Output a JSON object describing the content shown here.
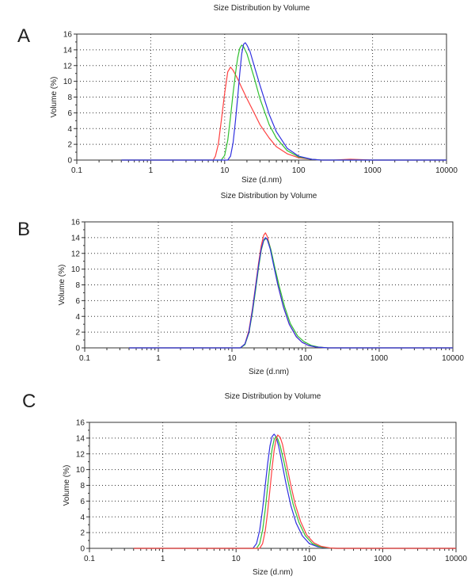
{
  "chart_data": [
    {
      "type": "line",
      "panel_label": "A",
      "title": "Size Distribution by Volume",
      "xlabel": "Size (d.nm)",
      "ylabel": "Volume (%)",
      "x_scale": "log",
      "xlim": [
        0.1,
        10000
      ],
      "ylim": [
        0,
        16
      ],
      "x_ticks": [
        "0.1",
        "1",
        "10",
        "100",
        "1000",
        "10000"
      ],
      "y_ticks": [
        "0",
        "2",
        "4",
        "6",
        "8",
        "10",
        "12",
        "14",
        "16"
      ],
      "grid": "dotted",
      "series": [
        {
          "color": "#ff4040",
          "x": [
            0.4,
            7.0,
            7.5,
            8.2,
            9.0,
            10.0,
            11.0,
            12.0,
            13.0,
            15.0,
            17.0,
            20.0,
            25.0,
            30.0,
            40.0,
            50.0,
            70.0,
            100.0,
            150.0,
            200.0,
            300.0,
            500.0,
            1000.0,
            5000.0,
            10000.0
          ],
          "y": [
            0,
            0,
            0.5,
            2.0,
            5.0,
            8.5,
            11.2,
            11.8,
            11.4,
            10.3,
            9.2,
            7.8,
            6.0,
            4.5,
            2.8,
            1.7,
            0.8,
            0.3,
            0.1,
            0,
            0,
            0.1,
            0,
            0,
            0
          ]
        },
        {
          "color": "#30c030",
          "x": [
            0.4,
            9.0,
            10.0,
            11.0,
            12.0,
            13.0,
            14.0,
            15.0,
            16.0,
            17.0,
            18.0,
            20.0,
            25.0,
            30.0,
            40.0,
            50.0,
            70.0,
            100.0,
            150.0,
            200.0,
            10000.0
          ],
          "y": [
            0,
            0,
            0.6,
            2.5,
            5.5,
            8.5,
            11.0,
            13.0,
            14.2,
            14.6,
            14.4,
            13.5,
            10.5,
            7.8,
            4.5,
            2.8,
            1.2,
            0.4,
            0.1,
            0,
            0
          ]
        },
        {
          "color": "#3030e0",
          "x": [
            0.4,
            11.0,
            12.0,
            13.0,
            14.0,
            15.0,
            16.0,
            17.0,
            18.0,
            19.0,
            20.0,
            22.0,
            25.0,
            30.0,
            40.0,
            50.0,
            70.0,
            100.0,
            150.0,
            200.0,
            10000.0
          ],
          "y": [
            0,
            0,
            0.5,
            2.2,
            5.0,
            8.0,
            11.0,
            13.5,
            14.7,
            14.9,
            14.6,
            13.8,
            12.0,
            9.5,
            5.8,
            3.6,
            1.5,
            0.5,
            0.1,
            0,
            0
          ]
        }
      ]
    },
    {
      "type": "line",
      "panel_label": "B",
      "title": "Size Distribution by Volume",
      "xlabel": "Size (d.nm)",
      "ylabel": "Volume (%)",
      "x_scale": "log",
      "xlim": [
        0.1,
        10000
      ],
      "ylim": [
        0,
        16
      ],
      "x_ticks": [
        "0.1",
        "1",
        "10",
        "100",
        "1000",
        "10000"
      ],
      "y_ticks": [
        "0",
        "2",
        "4",
        "6",
        "8",
        "10",
        "12",
        "14",
        "16"
      ],
      "grid": "dotted",
      "series": [
        {
          "color": "#ff4040",
          "x": [
            0.4,
            13.0,
            15.0,
            17.0,
            19.0,
            21.0,
            23.0,
            25.0,
            27.0,
            28.5,
            30.0,
            33.0,
            37.0,
            42.0,
            50.0,
            60.0,
            75.0,
            90.0,
            110.0,
            140.0,
            200.0,
            10000.0
          ],
          "y": [
            0,
            0,
            0.5,
            2.2,
            5.0,
            8.0,
            10.8,
            13.0,
            14.3,
            14.6,
            14.2,
            12.8,
            10.5,
            8.0,
            5.2,
            3.0,
            1.4,
            0.7,
            0.3,
            0.1,
            0,
            0
          ]
        },
        {
          "color": "#30c030",
          "x": [
            0.4,
            13.0,
            15.0,
            17.0,
            19.0,
            21.0,
            23.0,
            25.0,
            27.0,
            29.0,
            31.0,
            34.0,
            38.0,
            44.0,
            52.0,
            62.0,
            78.0,
            95.0,
            120.0,
            150.0,
            200.0,
            10000.0
          ],
          "y": [
            0,
            0,
            0.4,
            1.9,
            4.5,
            7.4,
            10.2,
            12.4,
            13.6,
            13.9,
            13.6,
            12.4,
            10.3,
            7.8,
            5.2,
            3.1,
            1.5,
            0.8,
            0.3,
            0.1,
            0,
            0
          ]
        },
        {
          "color": "#3030e0",
          "x": [
            0.4,
            13.0,
            15.0,
            17.0,
            19.0,
            21.0,
            23.0,
            25.0,
            27.0,
            28.5,
            30.0,
            33.0,
            37.0,
            42.0,
            50.0,
            60.0,
            75.0,
            90.0,
            110.0,
            140.0,
            200.0,
            10000.0
          ],
          "y": [
            0,
            0,
            0.5,
            2.0,
            4.8,
            7.8,
            10.5,
            12.6,
            13.7,
            14.0,
            13.8,
            12.6,
            10.4,
            8.0,
            5.2,
            3.0,
            1.4,
            0.7,
            0.3,
            0.1,
            0,
            0
          ]
        }
      ]
    },
    {
      "type": "line",
      "panel_label": "C",
      "title": "Size Distribution by Volume",
      "xlabel": "Size (d.nm)",
      "ylabel": "Volume (%)",
      "x_scale": "log",
      "xlim": [
        0.1,
        10000
      ],
      "ylim": [
        0,
        16
      ],
      "x_ticks": [
        "0.1",
        "1",
        "10",
        "100",
        "1000",
        "10000"
      ],
      "y_ticks": [
        "0",
        "2",
        "4",
        "6",
        "8",
        "10",
        "12",
        "14",
        "16"
      ],
      "grid": "dotted",
      "series": [
        {
          "color": "#3030e0",
          "x": [
            0.4,
            17.0,
            19.0,
            21.0,
            23.0,
            25.0,
            27.0,
            29.0,
            31.0,
            33.0,
            35.0,
            38.0,
            42.0,
            48.0,
            56.0,
            66.0,
            80.0,
            100.0,
            130.0,
            170.0,
            220.0,
            10000.0
          ],
          "y": [
            0,
            0,
            0.6,
            2.3,
            5.0,
            8.0,
            10.8,
            13.0,
            14.2,
            14.5,
            14.2,
            13.0,
            11.0,
            8.2,
            5.4,
            3.2,
            1.6,
            0.6,
            0.2,
            0.05,
            0,
            0
          ]
        },
        {
          "color": "#30c030",
          "x": [
            0.4,
            19.0,
            21.0,
            23.0,
            25.0,
            27.0,
            29.0,
            31.0,
            33.0,
            35.0,
            37.0,
            40.0,
            45.0,
            52.0,
            60.0,
            72.0,
            88.0,
            110.0,
            140.0,
            180.0,
            230.0,
            10000.0
          ],
          "y": [
            0,
            0,
            0.6,
            2.3,
            4.9,
            7.9,
            10.6,
            12.6,
            13.8,
            14.2,
            13.9,
            13.0,
            11.0,
            8.2,
            5.6,
            3.3,
            1.6,
            0.6,
            0.2,
            0.05,
            0,
            0
          ]
        },
        {
          "color": "#ff4040",
          "x": [
            0.4,
            21.0,
            23.0,
            25.0,
            27.0,
            29.0,
            31.0,
            33.0,
            35.0,
            37.0,
            40.0,
            43.0,
            48.0,
            55.0,
            64.0,
            76.0,
            92.0,
            115.0,
            145.0,
            190.0,
            240.0,
            10000.0
          ],
          "y": [
            0,
            0,
            0.6,
            2.2,
            4.7,
            7.5,
            10.2,
            12.4,
            13.8,
            14.4,
            14.1,
            13.2,
            11.0,
            8.3,
            5.6,
            3.4,
            1.7,
            0.7,
            0.25,
            0.05,
            0,
            0
          ]
        }
      ]
    }
  ]
}
